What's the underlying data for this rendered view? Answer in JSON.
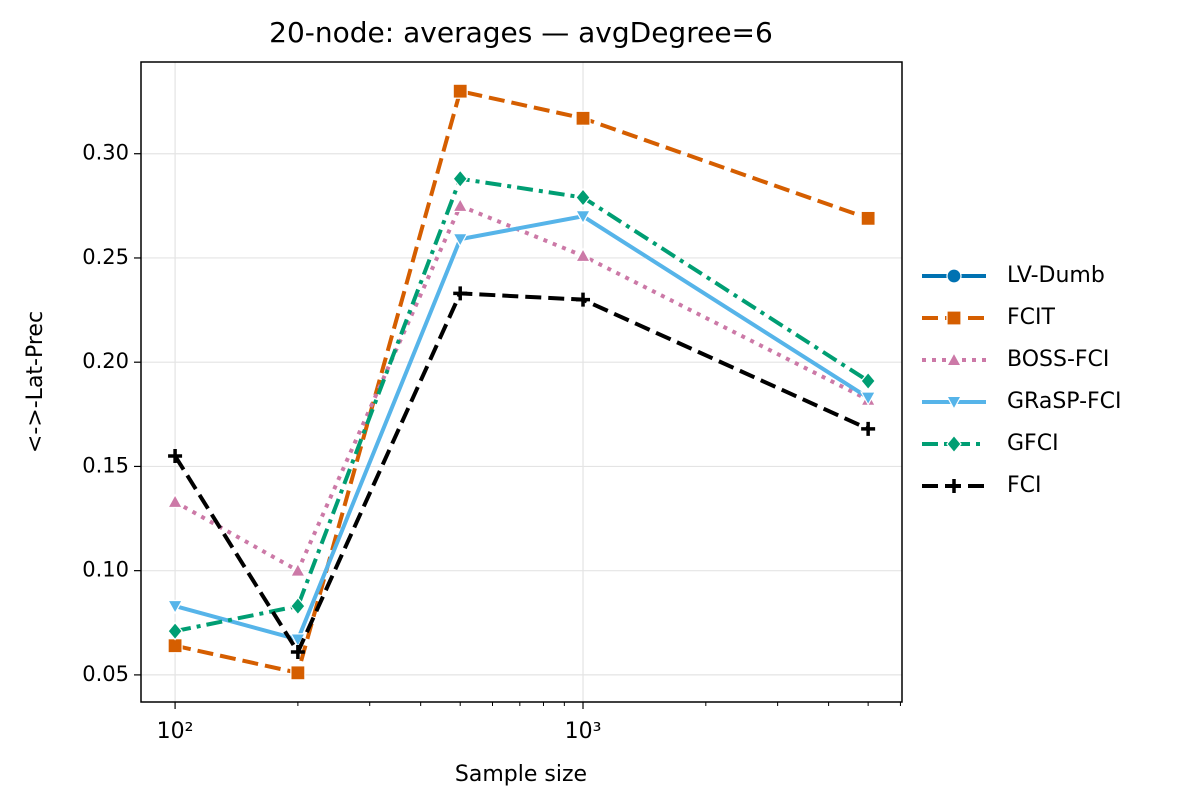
{
  "chart_data": {
    "type": "line",
    "title": "20-node: averages — avgDegree=6",
    "xlabel": "Sample size",
    "ylabel": "<->-Lat-Prec",
    "x": [
      100,
      200,
      500,
      1000,
      5000
    ],
    "xscale": "log",
    "xlim": [
      82.5,
      6053
    ],
    "xticks": [
      {
        "value": 100,
        "label": "10²"
      },
      {
        "value": 1000,
        "label": "10³"
      }
    ],
    "xminorticks": [
      200,
      300,
      400,
      500,
      600,
      700,
      800,
      900,
      2000,
      3000,
      4000,
      5000,
      6000
    ],
    "ylim": [
      0.037,
      0.344
    ],
    "yticks": [
      {
        "value": 0.05,
        "label": "0.05"
      },
      {
        "value": 0.1,
        "label": "0.10"
      },
      {
        "value": 0.15,
        "label": "0.15"
      },
      {
        "value": 0.2,
        "label": "0.20"
      },
      {
        "value": 0.25,
        "label": "0.25"
      },
      {
        "value": 0.3,
        "label": "0.30"
      }
    ],
    "grid": true,
    "legend": "outside right",
    "series": [
      {
        "name": "LV-Dumb",
        "color": "#0072b2",
        "marker": "circle",
        "linestyle": "solid",
        "values": [
          null,
          null,
          null,
          null,
          null
        ]
      },
      {
        "name": "FCIT",
        "color": "#d55e00",
        "marker": "square",
        "linestyle": "dashed",
        "values": [
          0.064,
          0.051,
          0.33,
          0.317,
          0.269
        ]
      },
      {
        "name": "BOSS-FCI",
        "color": "#cc79a7",
        "marker": "triangle-up",
        "linestyle": "dotted",
        "values": [
          0.133,
          0.1,
          0.275,
          0.251,
          0.182
        ]
      },
      {
        "name": "GRaSP-FCI",
        "color": "#56b4e9",
        "marker": "triangle-down",
        "linestyle": "solid",
        "values": [
          0.083,
          0.067,
          0.259,
          0.27,
          0.183
        ]
      },
      {
        "name": "GFCI",
        "color": "#009e73",
        "marker": "diamond",
        "linestyle": "dashdot",
        "values": [
          0.071,
          0.083,
          0.288,
          0.279,
          0.191
        ]
      },
      {
        "name": "FCI",
        "color": "#000000",
        "marker": "plus",
        "linestyle": "dashed",
        "values": [
          0.155,
          0.061,
          0.233,
          0.23,
          0.168
        ]
      }
    ]
  }
}
